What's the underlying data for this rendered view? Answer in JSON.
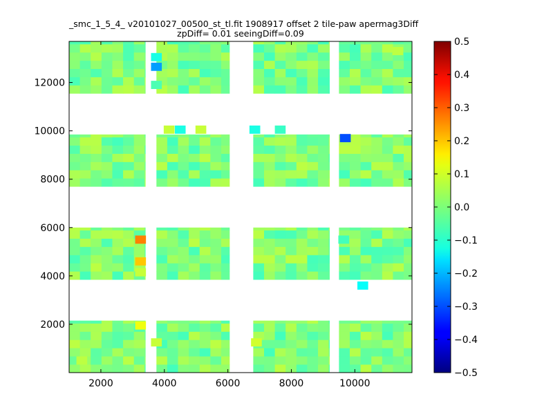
{
  "chart_data": {
    "type": "heatmap",
    "title_lines": [
      "_smc_1_5_4_ v20101027_00500_st_tl.fit 1908917 offset 2 tile-paw apermag3Diff",
      "zpDiff= 0.01 seeingDiff=0.09"
    ],
    "xlabel": "",
    "ylabel": "",
    "xlim": [
      1000,
      11800
    ],
    "ylim": [
      0,
      13700
    ],
    "x_ticks": [
      2000,
      4000,
      6000,
      8000,
      10000
    ],
    "x_tick_labels": [
      "2000",
      "4000",
      "6000",
      "8000",
      "10000"
    ],
    "y_ticks": [
      2000,
      4000,
      6000,
      8000,
      10000,
      12000
    ],
    "y_tick_labels": [
      "2000",
      "4000",
      "6000",
      "8000",
      "10000",
      "12000"
    ],
    "colormap": "jet",
    "colorbar": {
      "vmin": -0.5,
      "vmax": 0.5,
      "ticks": [
        0.5,
        0.4,
        0.3,
        0.2,
        0.1,
        0.0,
        -0.1,
        -0.2,
        -0.3,
        -0.4,
        -0.5
      ],
      "tick_labels": [
        "0.5",
        "0.4",
        "0.3",
        "0.2",
        "0.1",
        "0.0",
        "−0.1",
        "−0.2",
        "−0.3",
        "−0.4",
        "−0.5"
      ]
    },
    "cell_size": 340,
    "background_value": 0.0,
    "blocks": [
      {
        "x0": 1000,
        "x1": 3400,
        "y0": 0,
        "y1": 2150
      },
      {
        "x0": 3750,
        "x1": 6050,
        "y0": 0,
        "y1": 2150
      },
      {
        "x0": 6800,
        "x1": 9200,
        "y0": 0,
        "y1": 2150
      },
      {
        "x0": 9500,
        "x1": 11800,
        "y0": 0,
        "y1": 2150
      },
      {
        "x0": 1000,
        "x1": 3400,
        "y0": 3850,
        "y1": 6000
      },
      {
        "x0": 3750,
        "x1": 6050,
        "y0": 3850,
        "y1": 6000
      },
      {
        "x0": 6800,
        "x1": 9200,
        "y0": 3850,
        "y1": 6000
      },
      {
        "x0": 9500,
        "x1": 11800,
        "y0": 3850,
        "y1": 6000
      },
      {
        "x0": 1000,
        "x1": 3400,
        "y0": 7700,
        "y1": 9850
      },
      {
        "x0": 3750,
        "x1": 6050,
        "y0": 7700,
        "y1": 9850
      },
      {
        "x0": 6800,
        "x1": 9200,
        "y0": 7700,
        "y1": 9850
      },
      {
        "x0": 9500,
        "x1": 11800,
        "y0": 7700,
        "y1": 9850
      },
      {
        "x0": 1000,
        "x1": 3400,
        "y0": 11550,
        "y1": 13700
      },
      {
        "x0": 3750,
        "x1": 6050,
        "y0": 11550,
        "y1": 13700
      },
      {
        "x0": 6800,
        "x1": 9200,
        "y0": 11550,
        "y1": 13700
      },
      {
        "x0": 9500,
        "x1": 11800,
        "y0": 11550,
        "y1": 13700
      }
    ],
    "outliers": [
      {
        "x": 3250,
        "y": 5500,
        "value": 0.25
      },
      {
        "x": 3250,
        "y": 4600,
        "value": 0.18
      },
      {
        "x": 3250,
        "y": 4150,
        "value": 0.07
      },
      {
        "x": 3250,
        "y": 1950,
        "value": 0.11
      },
      {
        "x": 3750,
        "y": 1250,
        "value": 0.07
      },
      {
        "x": 6900,
        "y": 1250,
        "value": 0.08
      },
      {
        "x": 3750,
        "y": 13050,
        "value": -0.1
      },
      {
        "x": 3750,
        "y": 12650,
        "value": -0.22
      },
      {
        "x": 3750,
        "y": 11900,
        "value": -0.05
      },
      {
        "x": 4150,
        "y": 10050,
        "value": 0.07
      },
      {
        "x": 4500,
        "y": 10050,
        "value": -0.1
      },
      {
        "x": 5150,
        "y": 10050,
        "value": 0.07
      },
      {
        "x": 6850,
        "y": 10050,
        "value": -0.1
      },
      {
        "x": 7650,
        "y": 10050,
        "value": -0.07
      },
      {
        "x": 9700,
        "y": 9700,
        "value": -0.3
      },
      {
        "x": 10250,
        "y": 3600,
        "value": -0.12
      },
      {
        "x": 9650,
        "y": 5500,
        "value": -0.06
      },
      {
        "x": 11350,
        "y": 13300,
        "value": 0.06
      },
      {
        "x": 1400,
        "y": 500,
        "value": 0.06
      }
    ]
  }
}
